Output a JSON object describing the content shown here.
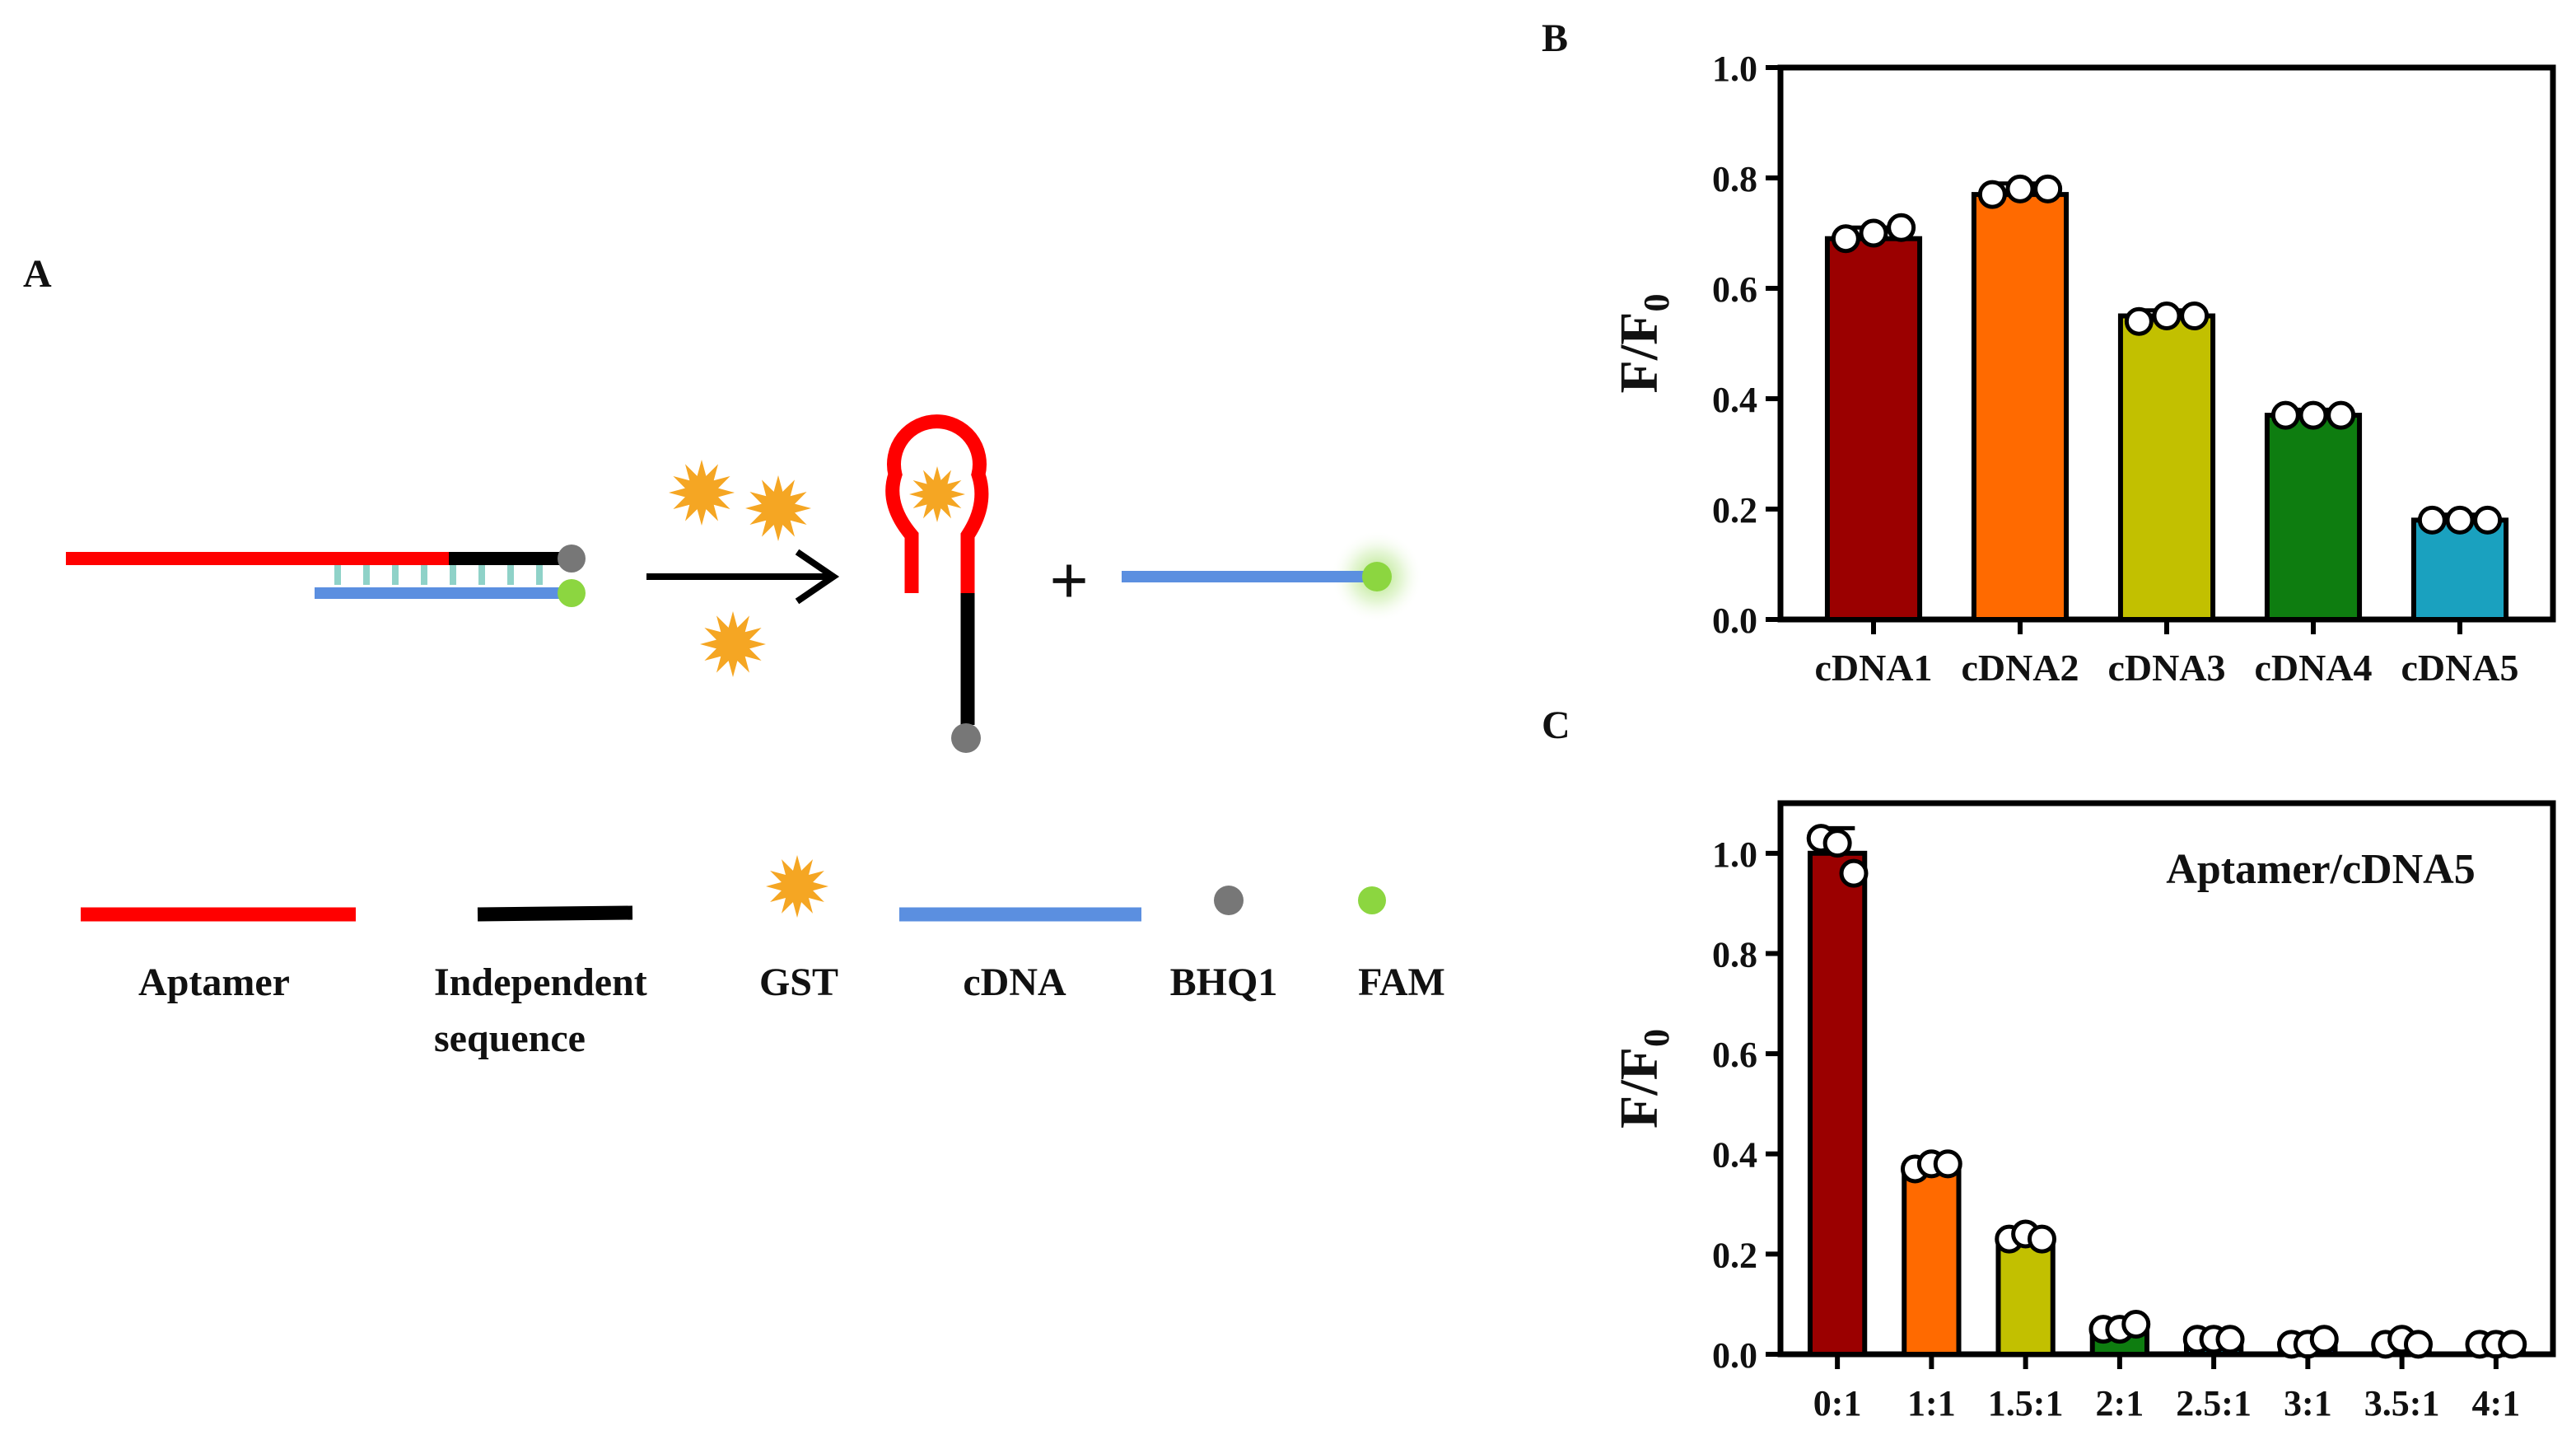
{
  "panels": {
    "a": "A",
    "b": "B",
    "c": "C"
  },
  "scheme": {
    "arrow": "→",
    "plus": "+",
    "legend": {
      "aptamer": "Aptamer",
      "independent_line1": "Independent",
      "independent_line2": "sequence",
      "gst": "GST",
      "cdna": "cDNA",
      "bhq1": "BHQ1",
      "fam": "FAM"
    },
    "colors": {
      "aptamer": "#ff0000",
      "independent": "#000000",
      "gst": "#f5a623",
      "cdna": "#5b8fe0",
      "bhq1": "#777777",
      "fam": "#8cd640",
      "base_pair": "#8fd2c8"
    }
  },
  "chart_data": [
    {
      "panel": "B",
      "type": "bar",
      "ylabel": "F/F0",
      "ylabel_main": "F/F",
      "ylabel_sub": "0",
      "xlabel": "",
      "ylim": [
        0,
        1.0
      ],
      "yticks": [
        "0.0",
        "0.2",
        "0.4",
        "0.6",
        "0.8",
        "1.0"
      ],
      "categories": [
        "cDNA1",
        "cDNA2",
        "cDNA3",
        "cDNA4",
        "cDNA5"
      ],
      "values": [
        0.69,
        0.77,
        0.55,
        0.37,
        0.18
      ],
      "errors": [
        0.02,
        0.02,
        0.01,
        0.01,
        0.01
      ],
      "points": [
        [
          0.69,
          0.7,
          0.71
        ],
        [
          0.77,
          0.78,
          0.78
        ],
        [
          0.54,
          0.55,
          0.55
        ],
        [
          0.37,
          0.37,
          0.37
        ],
        [
          0.18,
          0.18,
          0.18
        ]
      ],
      "colors": [
        "#9b0000",
        "#ff6a00",
        "#c2c000",
        "#0e7d10",
        "#1aa1bf"
      ]
    },
    {
      "panel": "C",
      "type": "bar",
      "title": "Aptamer/cDNA5",
      "ylabel": "F/F0",
      "ylabel_main": "F/F",
      "ylabel_sub": "0",
      "xlabel": "",
      "ylim": [
        0,
        1.1
      ],
      "yticks": [
        "0.0",
        "0.2",
        "0.4",
        "0.6",
        "0.8",
        "1.0"
      ],
      "categories": [
        "0:1",
        "1:1",
        "1.5:1",
        "2:1",
        "2.5:1",
        "3:1",
        "3.5:1",
        "4:1"
      ],
      "values": [
        1.0,
        0.37,
        0.23,
        0.05,
        0.03,
        0.02,
        0.02,
        0.02
      ],
      "errors": [
        0.05,
        0.01,
        0.01,
        0.01,
        0.01,
        0.01,
        0.01,
        0.01
      ],
      "points": [
        [
          1.03,
          1.02,
          0.96
        ],
        [
          0.37,
          0.38,
          0.38
        ],
        [
          0.23,
          0.24,
          0.23
        ],
        [
          0.05,
          0.05,
          0.06
        ],
        [
          0.03,
          0.03,
          0.03
        ],
        [
          0.02,
          0.02,
          0.03
        ],
        [
          0.02,
          0.03,
          0.02
        ],
        [
          0.02,
          0.02,
          0.02
        ]
      ],
      "colors": [
        "#9b0000",
        "#ff6a00",
        "#c2c000",
        "#0e7d10",
        "#1aa1bf",
        "#2a2aa8",
        "#7a1f8f",
        "#b41e59"
      ]
    }
  ]
}
